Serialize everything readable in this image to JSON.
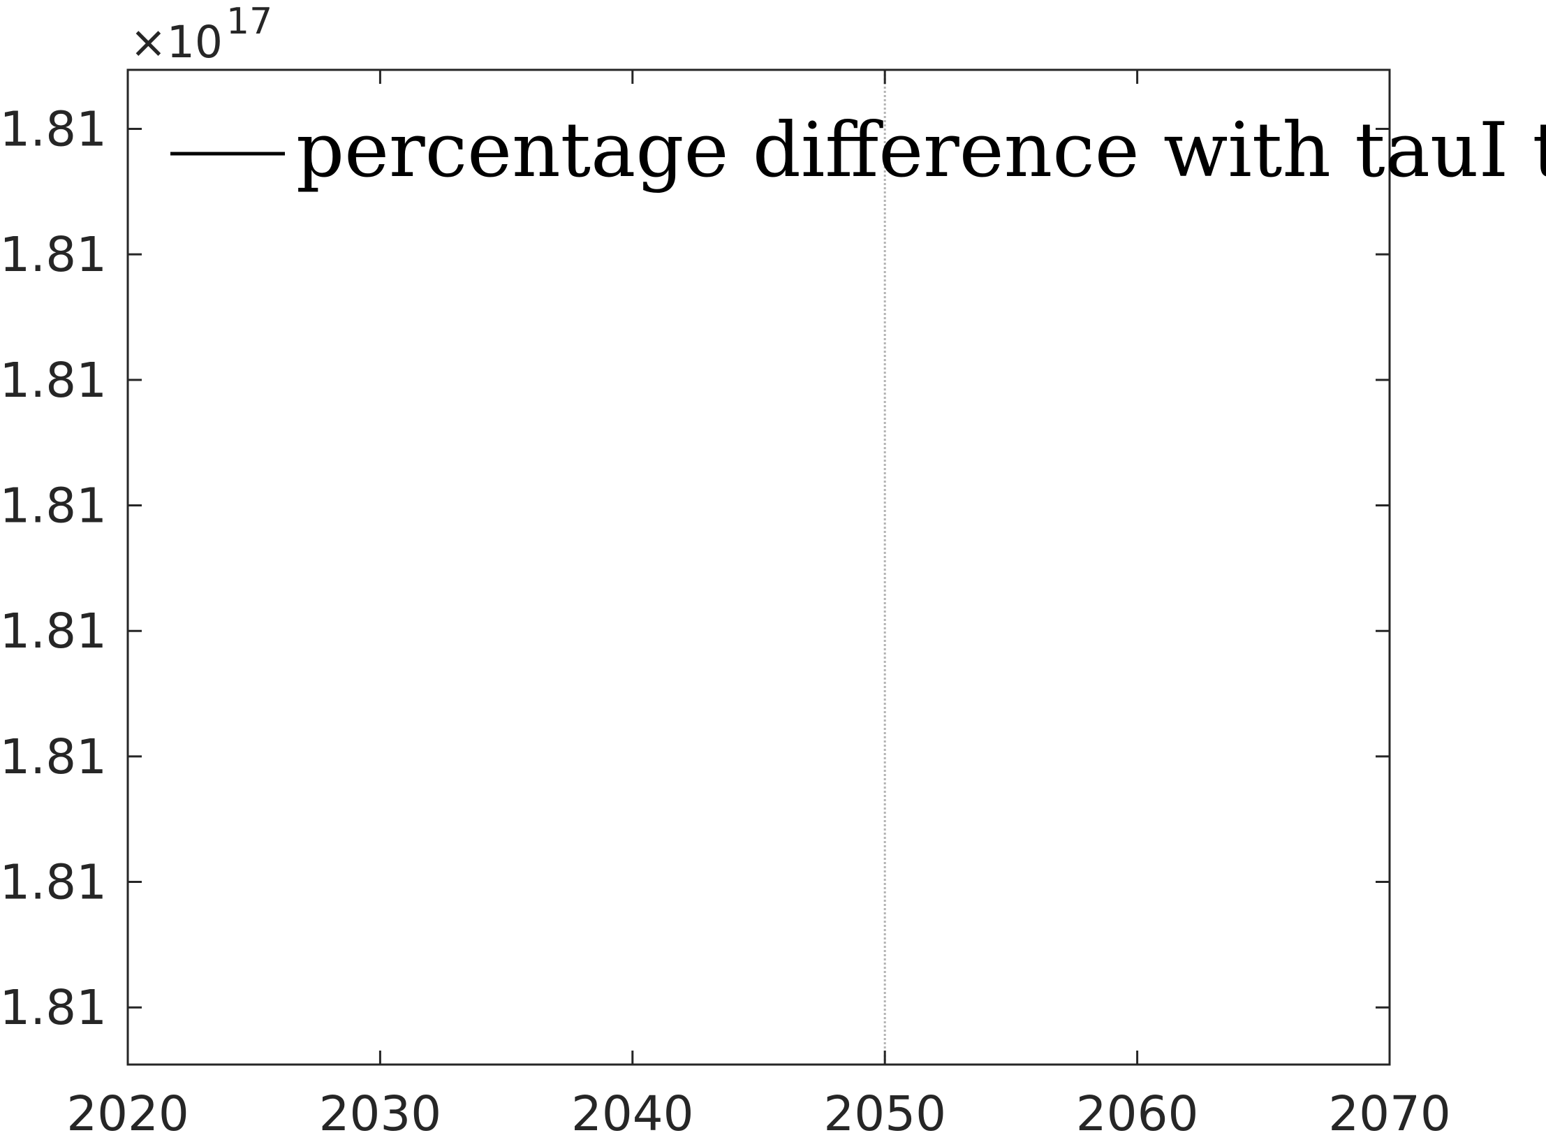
{
  "chart_data": {
    "type": "line",
    "title": "",
    "xlabel": "",
    "ylabel": "",
    "x_ticks": [
      2020,
      2030,
      2040,
      2050,
      2060,
      2070
    ],
    "x_tick_labels": [
      "2020",
      "2030",
      "2040",
      "2050",
      "2060",
      "2070"
    ],
    "xlim": [
      2020,
      2070
    ],
    "y_ticks": [
      1,
      2,
      3,
      4,
      5,
      6,
      7,
      8
    ],
    "y_tick_labels": [
      "1.81",
      "1.81",
      "1.81",
      "1.81",
      "1.81",
      "1.81",
      "1.81",
      "1.81"
    ],
    "ylim": [
      0.545,
      8.47
    ],
    "y_exponent_prefix": "×10",
    "y_exponent_power": "17",
    "reference_line": {
      "x": 2050,
      "style": "dotted",
      "color": "#b3b3b3"
    },
    "series": [
      {
        "name": "percentage difference with tauI to r",
        "color": "#000000",
        "values": []
      }
    ],
    "legend": {
      "placement": "top-left",
      "entries": [
        "percentage difference with tauI to r"
      ]
    },
    "grid": false
  }
}
